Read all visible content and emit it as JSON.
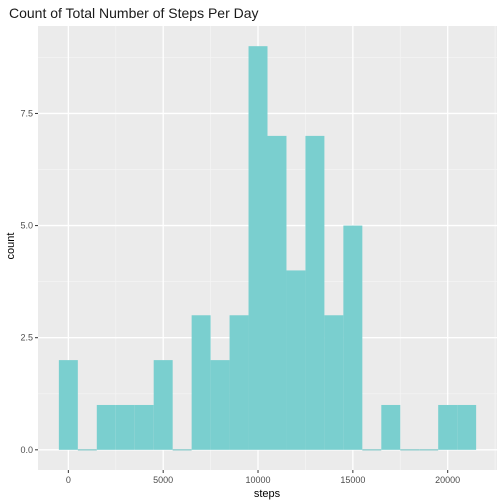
{
  "chart_data": {
    "type": "bar",
    "title": "Count of Total Number of Steps Per Day",
    "xlabel": "steps",
    "ylabel": "count",
    "bin_width": 1000,
    "bins": [
      {
        "x0": -500,
        "x1": 500,
        "count": 2
      },
      {
        "x0": 500,
        "x1": 1500,
        "count": 0
      },
      {
        "x0": 1500,
        "x1": 2500,
        "count": 1
      },
      {
        "x0": 2500,
        "x1": 3500,
        "count": 1
      },
      {
        "x0": 3500,
        "x1": 4500,
        "count": 1
      },
      {
        "x0": 4500,
        "x1": 5500,
        "count": 2
      },
      {
        "x0": 5500,
        "x1": 6500,
        "count": 0
      },
      {
        "x0": 6500,
        "x1": 7500,
        "count": 3
      },
      {
        "x0": 7500,
        "x1": 8500,
        "count": 2
      },
      {
        "x0": 8500,
        "x1": 9500,
        "count": 3
      },
      {
        "x0": 9500,
        "x1": 10500,
        "count": 9
      },
      {
        "x0": 10500,
        "x1": 11500,
        "count": 7
      },
      {
        "x0": 11500,
        "x1": 12500,
        "count": 4
      },
      {
        "x0": 12500,
        "x1": 13500,
        "count": 7
      },
      {
        "x0": 13500,
        "x1": 14500,
        "count": 3
      },
      {
        "x0": 14500,
        "x1": 15500,
        "count": 5
      },
      {
        "x0": 15500,
        "x1": 16500,
        "count": 0
      },
      {
        "x0": 16500,
        "x1": 17500,
        "count": 1
      },
      {
        "x0": 17500,
        "x1": 18500,
        "count": 0
      },
      {
        "x0": 18500,
        "x1": 19500,
        "count": 0
      },
      {
        "x0": 19500,
        "x1": 20500,
        "count": 1
      },
      {
        "x0": 20500,
        "x1": 21500,
        "count": 1
      }
    ],
    "xlim": [
      -1600,
      22600
    ],
    "ylim": [
      -0.45,
      9.45
    ],
    "x_ticks": [
      0,
      5000,
      10000,
      15000,
      20000
    ],
    "x_tick_labels": [
      "0",
      "5000",
      "10000",
      "15000",
      "20000"
    ],
    "y_ticks": [
      0,
      2.5,
      5,
      7.5
    ],
    "y_tick_labels": [
      "0.0",
      "2.5",
      "5.0",
      "7.5"
    ],
    "grid": true,
    "legend": "none",
    "colors": {
      "bar": "#7ACFCF",
      "panel": "#EBEBEB",
      "grid_major": "#FFFFFF",
      "grid_minor": "#F4F4F4",
      "baseline": "#66BBBB"
    }
  }
}
